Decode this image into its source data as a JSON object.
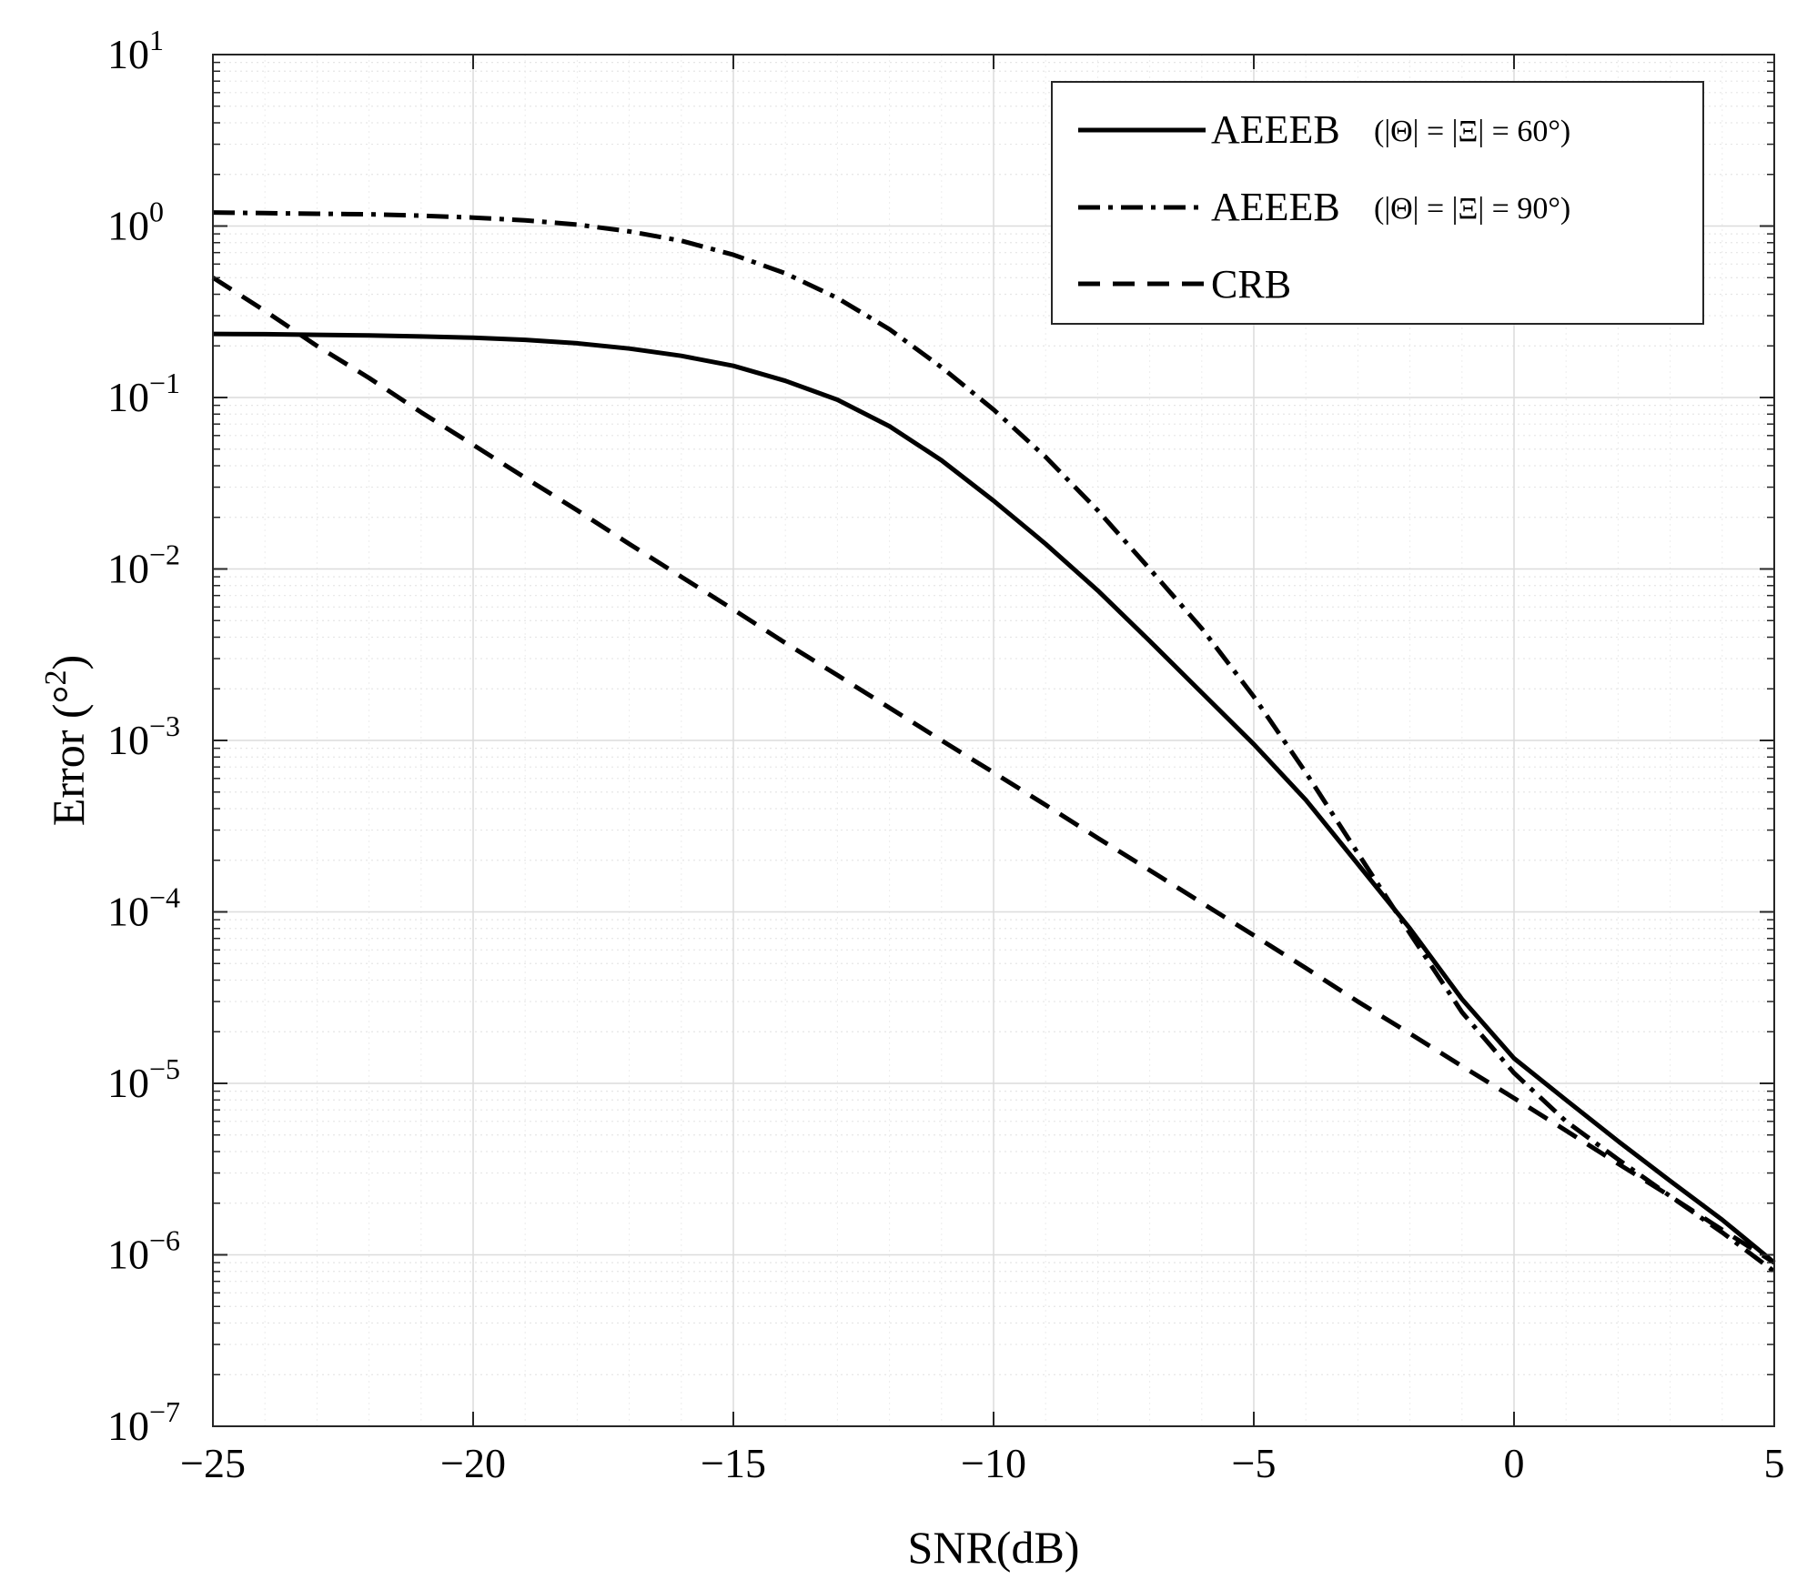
{
  "chart_data": {
    "type": "line",
    "title": "",
    "xlabel": "SNR(dB)",
    "ylabel": "Error (°2)",
    "ylabel_parts": {
      "base": "Error (°",
      "exp": "2",
      "close": ")"
    },
    "xlim": [
      -25,
      5
    ],
    "ylim": [
      1e-07,
      10
    ],
    "yscale": "log",
    "grid": true,
    "legend_position": "top-right",
    "x_ticks": [
      -25,
      -20,
      -15,
      -10,
      -5,
      0,
      5
    ],
    "x_tick_labels": [
      "−25",
      "−20",
      "−15",
      "−10",
      "−5",
      "0",
      "5"
    ],
    "y_ticks": [
      {
        "base": "10",
        "exp": "−7"
      },
      {
        "base": "10",
        "exp": "−6"
      },
      {
        "base": "10",
        "exp": "−5"
      },
      {
        "base": "10",
        "exp": "−4"
      },
      {
        "base": "10",
        "exp": "−3"
      },
      {
        "base": "10",
        "exp": "−2"
      },
      {
        "base": "10",
        "exp": "−1"
      },
      {
        "base": "10",
        "exp": "0"
      },
      {
        "base": "10",
        "exp": "1"
      }
    ],
    "series": [
      {
        "name": "AEEEB",
        "condition": "(|Θ| = |Ξ| = 60°)",
        "style": "solid",
        "x": [
          -25,
          -24,
          -23,
          -22,
          -21,
          -20,
          -19,
          -18,
          -17,
          -16,
          -15,
          -14,
          -13,
          -12,
          -11,
          -10,
          -9,
          -8,
          -7,
          -6,
          -5,
          -4,
          -3,
          -2,
          -1,
          0,
          1,
          2,
          3,
          4,
          5
        ],
        "values": [
          0.235,
          0.234,
          0.232,
          0.23,
          0.227,
          0.223,
          0.217,
          0.207,
          0.193,
          0.175,
          0.153,
          0.125,
          0.097,
          0.068,
          0.043,
          0.025,
          0.014,
          0.0075,
          0.0038,
          0.0019,
          0.00095,
          0.00045,
          0.00019,
          8e-05,
          3.1e-05,
          1.4e-05,
          8e-06,
          4.6e-06,
          2.7e-06,
          1.6e-06,
          9e-07
        ]
      },
      {
        "name": "AEEEB",
        "condition": "(|Θ| = |Ξ| = 90°)",
        "style": "dashdot",
        "x": [
          -25,
          -24,
          -23,
          -22,
          -21,
          -20,
          -19,
          -18,
          -17,
          -16,
          -15,
          -14,
          -13,
          -12,
          -11,
          -10,
          -9,
          -8,
          -7,
          -6,
          -5,
          -4,
          -3,
          -2,
          -1,
          0,
          1,
          2,
          3,
          4,
          5
        ],
        "values": [
          1.2,
          1.19,
          1.18,
          1.17,
          1.15,
          1.12,
          1.08,
          1.02,
          0.93,
          0.82,
          0.68,
          0.53,
          0.38,
          0.25,
          0.15,
          0.085,
          0.045,
          0.022,
          0.01,
          0.0045,
          0.0018,
          0.00065,
          0.00022,
          7.5e-05,
          2.6e-05,
          1.15e-05,
          6e-06,
          3.6e-06,
          2.2e-06,
          1.35e-06,
          8e-07
        ]
      },
      {
        "name": "CRB",
        "condition": "",
        "style": "dashed",
        "x": [
          -25,
          -24,
          -23,
          -22,
          -21,
          -20,
          -19,
          -18,
          -17,
          -16,
          -15,
          -14,
          -13,
          -12,
          -11,
          -10,
          -9,
          -8,
          -7,
          -6,
          -5,
          -4,
          -3,
          -2,
          -1,
          0,
          1,
          2,
          3,
          4,
          5
        ],
        "values": [
          0.5,
          0.32,
          0.2,
          0.13,
          0.082,
          0.053,
          0.034,
          0.022,
          0.014,
          0.009,
          0.0058,
          0.0037,
          0.0024,
          0.00155,
          0.001,
          0.00065,
          0.00042,
          0.00027,
          0.000175,
          0.000113,
          7.3e-05,
          4.7e-05,
          3e-05,
          1.95e-05,
          1.26e-05,
          8.2e-06,
          5.3e-06,
          3.4e-06,
          2.2e-06,
          1.4e-06,
          9e-07
        ]
      }
    ]
  }
}
